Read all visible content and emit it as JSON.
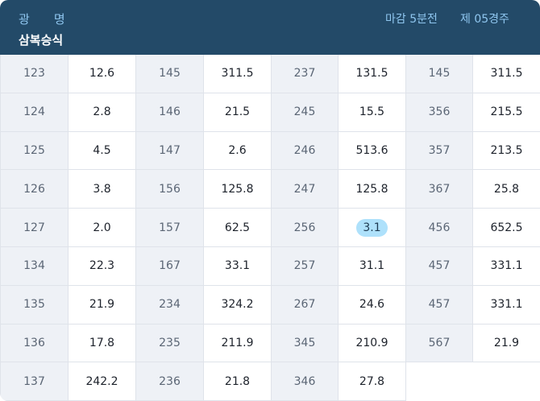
{
  "header": {
    "venue_a": "광",
    "venue_b": "명",
    "bet_type": "삼복승식",
    "deadline": "마감 5분전",
    "race": "제 05경주"
  },
  "colors": {
    "header_bg": "#234a68",
    "header_text": "#8fc6ef",
    "combo_bg": "#eef1f6",
    "highlight": "#aee1fb"
  },
  "rows": [
    [
      {
        "c": "123",
        "o": "12.6"
      },
      {
        "c": "145",
        "o": "311.5"
      },
      {
        "c": "237",
        "o": "131.5"
      },
      {
        "c": "145",
        "o": "311.5"
      }
    ],
    [
      {
        "c": "124",
        "o": "2.8"
      },
      {
        "c": "146",
        "o": "21.5"
      },
      {
        "c": "245",
        "o": "15.5"
      },
      {
        "c": "356",
        "o": "215.5"
      }
    ],
    [
      {
        "c": "125",
        "o": "4.5"
      },
      {
        "c": "147",
        "o": "2.6"
      },
      {
        "c": "246",
        "o": "513.6"
      },
      {
        "c": "357",
        "o": "213.5"
      }
    ],
    [
      {
        "c": "126",
        "o": "3.8"
      },
      {
        "c": "156",
        "o": "125.8"
      },
      {
        "c": "247",
        "o": "125.8"
      },
      {
        "c": "367",
        "o": "25.8"
      }
    ],
    [
      {
        "c": "127",
        "o": "2.0"
      },
      {
        "c": "157",
        "o": "62.5"
      },
      {
        "c": "256",
        "o": "3.1",
        "highlight": true
      },
      {
        "c": "456",
        "o": "652.5"
      }
    ],
    [
      {
        "c": "134",
        "o": "22.3"
      },
      {
        "c": "167",
        "o": "33.1"
      },
      {
        "c": "257",
        "o": "31.1"
      },
      {
        "c": "457",
        "o": "331.1"
      }
    ],
    [
      {
        "c": "135",
        "o": "21.9"
      },
      {
        "c": "234",
        "o": "324.2"
      },
      {
        "c": "267",
        "o": "24.6"
      },
      {
        "c": "457",
        "o": "331.1"
      }
    ],
    [
      {
        "c": "136",
        "o": "17.8"
      },
      {
        "c": "235",
        "o": "211.9"
      },
      {
        "c": "345",
        "o": "210.9"
      },
      {
        "c": "567",
        "o": "21.9"
      }
    ],
    [
      {
        "c": "137",
        "o": "242.2"
      },
      {
        "c": "236",
        "o": "21.8"
      },
      {
        "c": "346",
        "o": "27.8"
      }
    ]
  ]
}
